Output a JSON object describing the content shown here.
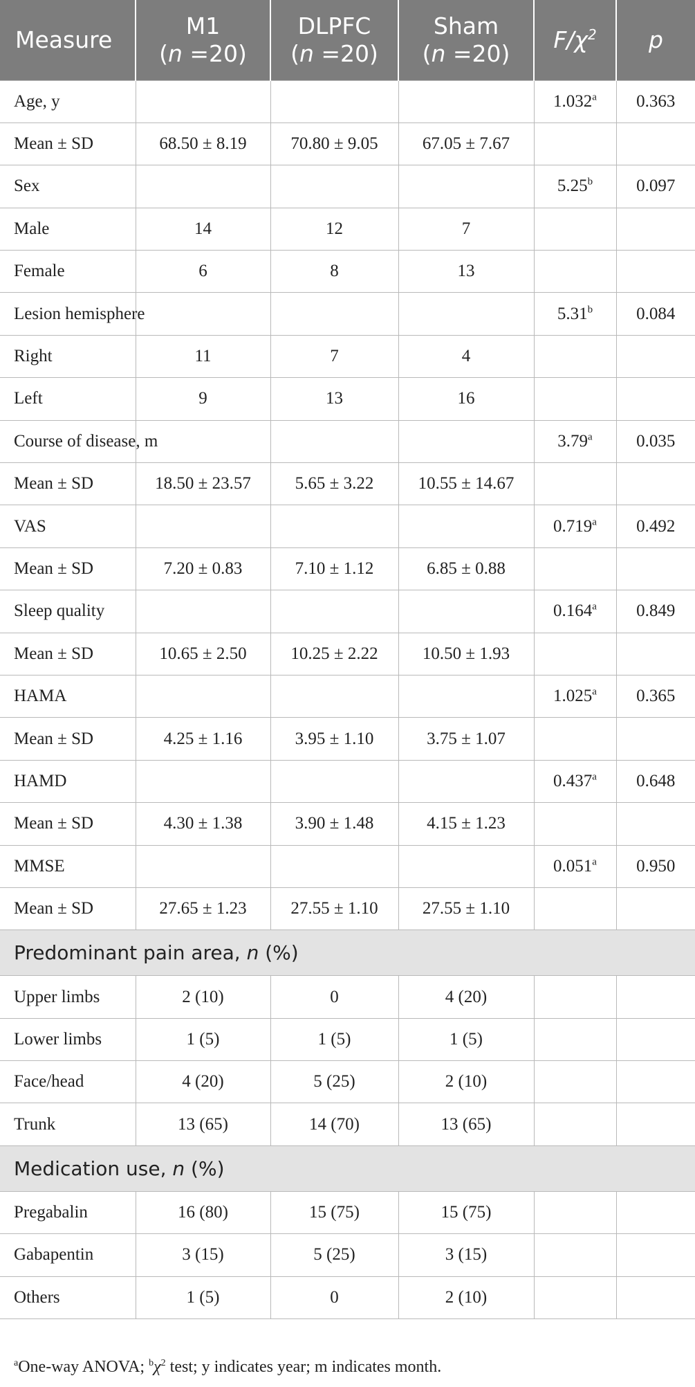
{
  "header": {
    "measure": "Measure",
    "groups": [
      {
        "name": "M1",
        "n_label": "n",
        "n_value": " =20)"
      },
      {
        "name": "DLPFC",
        "n_label": "n",
        "n_value": " =20)"
      },
      {
        "name": "Sham",
        "n_label": "n",
        "n_value": " =20)"
      }
    ],
    "stat_f": "F",
    "stat_sep": "/",
    "stat_chi": "χ",
    "stat_chi_sup": "2",
    "p": "p"
  },
  "rows": [
    {
      "type": "data",
      "label": "Age, y",
      "m1": "",
      "dlpfc": "",
      "sham": "",
      "stat": "1.032",
      "stat_sup": "a",
      "p": "0.363"
    },
    {
      "type": "data",
      "label": "Mean ± SD",
      "m1": "68.50 ± 8.19",
      "dlpfc": "70.80 ± 9.05",
      "sham": "67.05 ± 7.67",
      "stat": "",
      "stat_sup": "",
      "p": ""
    },
    {
      "type": "data",
      "label": "Sex",
      "m1": "",
      "dlpfc": "",
      "sham": "",
      "stat": "5.25",
      "stat_sup": "b",
      "p": "0.097"
    },
    {
      "type": "data",
      "label": "Male",
      "m1": "14",
      "dlpfc": "12",
      "sham": "7",
      "stat": "",
      "stat_sup": "",
      "p": ""
    },
    {
      "type": "data",
      "label": "Female",
      "m1": "6",
      "dlpfc": "8",
      "sham": "13",
      "stat": "",
      "stat_sup": "",
      "p": ""
    },
    {
      "type": "data",
      "label": "Lesion hemisphere",
      "m1": "",
      "dlpfc": "",
      "sham": "",
      "stat": "5.31",
      "stat_sup": "b",
      "p": "0.084"
    },
    {
      "type": "data",
      "label": "Right",
      "m1": "11",
      "dlpfc": "7",
      "sham": "4",
      "stat": "",
      "stat_sup": "",
      "p": ""
    },
    {
      "type": "data",
      "label": "Left",
      "m1": "9",
      "dlpfc": "13",
      "sham": "16",
      "stat": "",
      "stat_sup": "",
      "p": ""
    },
    {
      "type": "data",
      "label": "Course of disease, m",
      "m1": "",
      "dlpfc": "",
      "sham": "",
      "stat": "3.79",
      "stat_sup": "a",
      "p": "0.035"
    },
    {
      "type": "data",
      "label": "Mean ± SD",
      "m1": "18.50 ± 23.57",
      "dlpfc": "5.65 ± 3.22",
      "sham": "10.55 ± 14.67",
      "stat": "",
      "stat_sup": "",
      "p": ""
    },
    {
      "type": "data",
      "label": "VAS",
      "m1": "",
      "dlpfc": "",
      "sham": "",
      "stat": "0.719",
      "stat_sup": "a",
      "p": "0.492"
    },
    {
      "type": "data",
      "label": "Mean ± SD",
      "m1": "7.20 ± 0.83",
      "dlpfc": "7.10 ± 1.12",
      "sham": "6.85 ± 0.88",
      "stat": "",
      "stat_sup": "",
      "p": ""
    },
    {
      "type": "data",
      "label": "Sleep quality",
      "m1": "",
      "dlpfc": "",
      "sham": "",
      "stat": "0.164",
      "stat_sup": "a",
      "p": "0.849"
    },
    {
      "type": "data",
      "label": "Mean ± SD",
      "m1": "10.65 ± 2.50",
      "dlpfc": "10.25 ± 2.22",
      "sham": "10.50 ± 1.93",
      "stat": "",
      "stat_sup": "",
      "p": ""
    },
    {
      "type": "data",
      "label": "HAMA",
      "m1": "",
      "dlpfc": "",
      "sham": "",
      "stat": "1.025",
      "stat_sup": "a",
      "p": "0.365"
    },
    {
      "type": "data",
      "label": "Mean ± SD",
      "m1": "4.25 ± 1.16",
      "dlpfc": "3.95 ± 1.10",
      "sham": "3.75 ± 1.07",
      "stat": "",
      "stat_sup": "",
      "p": ""
    },
    {
      "type": "data",
      "label": "HAMD",
      "m1": "",
      "dlpfc": "",
      "sham": "",
      "stat": "0.437",
      "stat_sup": "a",
      "p": "0.648"
    },
    {
      "type": "data",
      "label": "Mean ± SD",
      "m1": "4.30 ± 1.38",
      "dlpfc": "3.90 ± 1.48",
      "sham": "4.15 ± 1.23",
      "stat": "",
      "stat_sup": "",
      "p": ""
    },
    {
      "type": "data",
      "label": "MMSE",
      "m1": "",
      "dlpfc": "",
      "sham": "",
      "stat": "0.051",
      "stat_sup": "a",
      "p": "0.950"
    },
    {
      "type": "data",
      "label": "Mean ± SD",
      "m1": "27.65 ± 1.23",
      "dlpfc": "27.55 ± 1.10",
      "sham": "27.55 ± 1.10",
      "stat": "",
      "stat_sup": "",
      "p": ""
    },
    {
      "type": "section",
      "label": "Predominant pain area, ",
      "n_label": "n",
      "suffix": " (%)"
    },
    {
      "type": "data",
      "label": "Upper limbs",
      "m1": "2 (10)",
      "dlpfc": "0",
      "sham": "4 (20)",
      "stat": "",
      "stat_sup": "",
      "p": ""
    },
    {
      "type": "data",
      "label": "Lower limbs",
      "m1": "1 (5)",
      "dlpfc": "1 (5)",
      "sham": "1 (5)",
      "stat": "",
      "stat_sup": "",
      "p": ""
    },
    {
      "type": "data",
      "label": "Face/head",
      "m1": "4 (20)",
      "dlpfc": "5 (25)",
      "sham": "2 (10)",
      "stat": "",
      "stat_sup": "",
      "p": ""
    },
    {
      "type": "data",
      "label": "Trunk",
      "m1": "13 (65)",
      "dlpfc": "14 (70)",
      "sham": "13 (65)",
      "stat": "",
      "stat_sup": "",
      "p": ""
    },
    {
      "type": "section",
      "label": "Medication use, ",
      "n_label": "n",
      "suffix": " (%)"
    },
    {
      "type": "data",
      "label": "Pregabalin",
      "m1": "16 (80)",
      "dlpfc": "15 (75)",
      "sham": "15 (75)",
      "stat": "",
      "stat_sup": "",
      "p": ""
    },
    {
      "type": "data",
      "label": "Gabapentin",
      "m1": "3 (15)",
      "dlpfc": "5 (25)",
      "sham": "3 (15)",
      "stat": "",
      "stat_sup": "",
      "p": ""
    },
    {
      "type": "data",
      "label": "Others",
      "m1": "1 (5)",
      "dlpfc": "0",
      "sham": "2 (10)",
      "stat": "",
      "stat_sup": "",
      "p": ""
    }
  ],
  "footnote": {
    "sup_a": "a",
    "text_a": "One-way ANOVA; ",
    "sup_b": "b",
    "chi": "χ",
    "chi_sup": "2",
    "text_b": " test; y indicates year; m indicates month."
  }
}
